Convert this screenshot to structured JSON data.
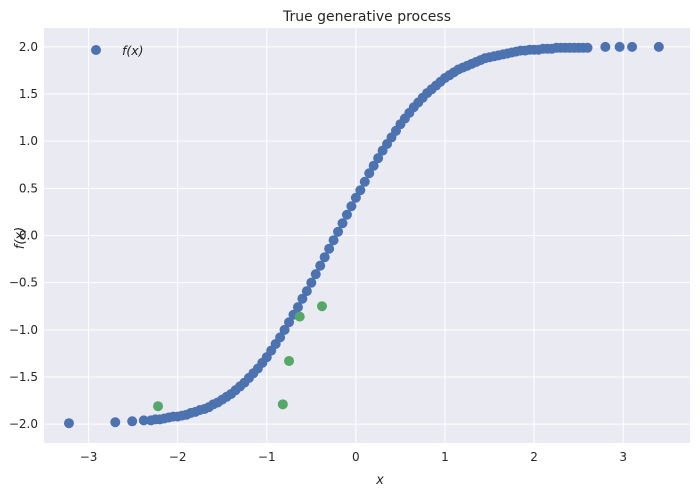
{
  "chart_data": {
    "type": "scatter",
    "title": "True generative process",
    "xlabel": "x",
    "ylabel": "f(x)",
    "xlim": [
      -3.5,
      3.75
    ],
    "ylim": [
      -2.2,
      2.2
    ],
    "xticks": [
      -3,
      -2,
      -1,
      0,
      1,
      2,
      3
    ],
    "yticks": [
      -2.0,
      -1.5,
      -1.0,
      -0.5,
      0.0,
      0.5,
      1.0,
      1.5,
      2.0
    ],
    "xtick_labels": [
      "−3",
      "−2",
      "−1",
      "0",
      "1",
      "2",
      "3"
    ],
    "ytick_labels": [
      "−2.0",
      "−1.5",
      "−1.0",
      "−0.5",
      "0.0",
      "0.5",
      "1.0",
      "1.5",
      "2.0"
    ],
    "grid": true,
    "legend_position": "top-left",
    "colors": {
      "background": "#EAEAF2",
      "grid": "#FFFFFF",
      "curve": "#4C72B0",
      "samples": "#55A868"
    },
    "series": [
      {
        "name": "f(x)",
        "color": "#4C72B0",
        "x": [
          -3.22,
          -2.7,
          -2.51,
          -2.38,
          -2.3,
          -2.25,
          -2.2,
          -2.15,
          -2.1,
          -2.05,
          -2.0,
          -1.95,
          -1.9,
          -1.85,
          -1.8,
          -1.75,
          -1.7,
          -1.65,
          -1.6,
          -1.55,
          -1.5,
          -1.45,
          -1.4,
          -1.35,
          -1.3,
          -1.25,
          -1.2,
          -1.15,
          -1.1,
          -1.05,
          -1.0,
          -0.95,
          -0.9,
          -0.85,
          -0.8,
          -0.75,
          -0.7,
          -0.65,
          -0.6,
          -0.55,
          -0.5,
          -0.45,
          -0.4,
          -0.35,
          -0.3,
          -0.25,
          -0.2,
          -0.15,
          -0.1,
          -0.05,
          0.0,
          0.05,
          0.1,
          0.15,
          0.2,
          0.25,
          0.3,
          0.35,
          0.4,
          0.45,
          0.5,
          0.55,
          0.6,
          0.65,
          0.7,
          0.75,
          0.8,
          0.85,
          0.9,
          0.95,
          1.0,
          1.05,
          1.1,
          1.15,
          1.2,
          1.25,
          1.3,
          1.35,
          1.4,
          1.45,
          1.5,
          1.55,
          1.6,
          1.65,
          1.7,
          1.75,
          1.8,
          1.85,
          1.9,
          1.95,
          2.0,
          2.05,
          2.1,
          2.15,
          2.2,
          2.25,
          2.3,
          2.35,
          2.4,
          2.45,
          2.5,
          2.55,
          2.6,
          2.8,
          2.96,
          3.1,
          3.4
        ],
        "y": [
          -1.99,
          -1.98,
          -1.97,
          -1.96,
          -1.96,
          -1.95,
          -1.95,
          -1.94,
          -1.93,
          -1.92,
          -1.92,
          -1.91,
          -1.9,
          -1.88,
          -1.87,
          -1.85,
          -1.84,
          -1.82,
          -1.79,
          -1.77,
          -1.74,
          -1.71,
          -1.68,
          -1.64,
          -1.6,
          -1.56,
          -1.51,
          -1.46,
          -1.41,
          -1.35,
          -1.29,
          -1.22,
          -1.15,
          -1.08,
          -1.0,
          -0.92,
          -0.84,
          -0.76,
          -0.67,
          -0.59,
          -0.5,
          -0.41,
          -0.32,
          -0.23,
          -0.14,
          -0.05,
          0.04,
          0.13,
          0.22,
          0.31,
          0.4,
          0.48,
          0.57,
          0.66,
          0.74,
          0.82,
          0.9,
          0.97,
          1.04,
          1.11,
          1.18,
          1.24,
          1.3,
          1.36,
          1.41,
          1.46,
          1.51,
          1.55,
          1.59,
          1.63,
          1.67,
          1.7,
          1.73,
          1.76,
          1.78,
          1.8,
          1.82,
          1.84,
          1.86,
          1.88,
          1.89,
          1.9,
          1.91,
          1.92,
          1.93,
          1.94,
          1.95,
          1.96,
          1.96,
          1.97,
          1.97,
          1.97,
          1.98,
          1.98,
          1.98,
          1.99,
          1.99,
          1.99,
          1.99,
          1.99,
          1.99,
          1.99,
          1.99,
          2.0,
          2.0,
          2.0,
          2.0
        ]
      },
      {
        "color": "#55A868",
        "x": [
          -2.22,
          -0.82,
          -0.75,
          -0.63,
          -0.38
        ],
        "y": [
          -1.81,
          -1.79,
          -1.33,
          -0.86,
          -0.75
        ]
      }
    ]
  }
}
